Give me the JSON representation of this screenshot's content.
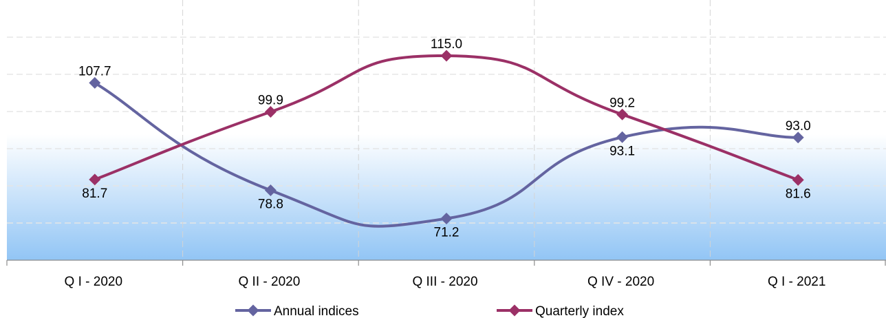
{
  "chart_data": {
    "type": "line",
    "categories": [
      "Q I - 2020",
      "Q II - 2020",
      "Q III - 2020",
      "Q IV - 2020",
      "Q I - 2021"
    ],
    "series": [
      {
        "name": "Annual indices",
        "values": [
          107.7,
          78.8,
          71.2,
          93.1,
          93.0
        ],
        "color": "#6464a0",
        "smooth": true
      },
      {
        "name": "Quarterly index",
        "values": [
          81.7,
          99.9,
          115.0,
          99.2,
          81.6
        ],
        "color": "#9b3066",
        "smooth": true
      }
    ],
    "ylim": [
      60,
      130
    ],
    "grid": true,
    "legend": "bottom-center",
    "background_gradient": [
      "#ffffff",
      "#92c5f5"
    ]
  }
}
